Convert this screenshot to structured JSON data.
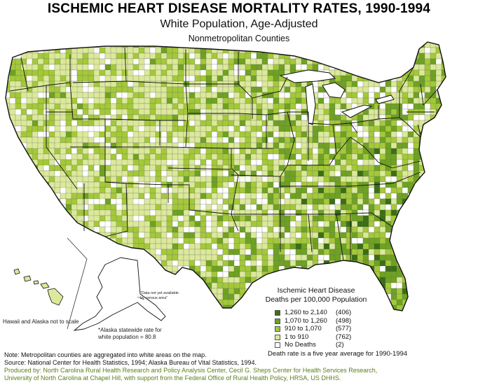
{
  "title": "ISCHEMIC HEART DISEASE MORTALITY RATES, 1990-1994",
  "subtitle": "White Population, Age-Adjusted",
  "subsubtitle": "Nonmetropolitan Counties",
  "legend": {
    "title_line1": "Ischemic Heart Disease",
    "title_line2": "Deaths per 100,000 Population",
    "classes": [
      {
        "range": "1,260 to 2,140",
        "count": "(406)",
        "color": "#3a6f14"
      },
      {
        "range": "1,070 to 1,260",
        "count": "(498)",
        "color": "#6ea221"
      },
      {
        "range": "910 to 1,070",
        "count": "(577)",
        "color": "#a4c938"
      },
      {
        "range": "1 to 910",
        "count": "(762)",
        "color": "#dbe99a"
      },
      {
        "range": "No Deaths",
        "count": "(2)",
        "color": "#ffffff"
      }
    ]
  },
  "avg_note": "Death rate is a five year average for 1990-1994",
  "alaska_na_note": "\"Data not yet available by census area\"",
  "alaska_rate_note": "*Alaska statewide rate for white population = 80.8",
  "hawaii_alaska_note": "Hawaii and Alaska not to scale",
  "footnotes": {
    "note": "Note: Metropolitan counties are aggregated into white areas on the map.",
    "source": "Source: National Center for Health Statistics, 1994; Alaska Bureau of Vital Statistics, 1994.",
    "produced_line1": "Produced by: North Carolina Rural Health Research and Policy Analysis Center, Cecil G. Sheps Center for Health Services Research,",
    "produced_line2": "University of North Carolina at Chapel Hill, with support from the Federal Office of Rural Health Policy, HRSA, US DHHS."
  },
  "colors": {
    "outline": "#111111",
    "metro": "#ffffff",
    "footer_green": "#5b7d1c"
  }
}
